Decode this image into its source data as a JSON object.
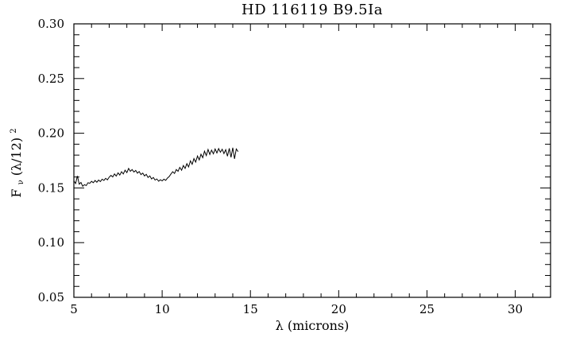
{
  "page": {
    "background": "#ffffff"
  },
  "chart_data": {
    "type": "line",
    "title": "HD 116119 B9.5Ia",
    "xlabel": "λ (microns)",
    "ylabel": "Fν(λ/12)²",
    "ylabel_parts": {
      "base": "F",
      "sub": "ν",
      "body": "(λ/12)",
      "sup": "2"
    },
    "xlim": [
      5,
      32
    ],
    "ylim": [
      0.05,
      0.3
    ],
    "x_major_ticks": [
      5,
      10,
      15,
      20,
      25,
      30
    ],
    "x_tick_labels": [
      "5",
      "10",
      "15",
      "20",
      "25",
      "30"
    ],
    "x_minor_step": 1,
    "y_major_ticks": [
      0.05,
      0.1,
      0.15,
      0.2,
      0.25,
      0.3
    ],
    "y_tick_labels": [
      "0.05",
      "0.10",
      "0.15",
      "0.20",
      "0.25",
      "0.30"
    ],
    "y_minor_step": 0.01,
    "grid": false,
    "legend": "none",
    "line_color": "#000000",
    "frame_color": "#000000",
    "background_color": "#ffffff",
    "series": [
      {
        "name": "HD 116119 spectrum",
        "points": [
          [
            5.0,
            0.1565
          ],
          [
            5.1,
            0.154
          ],
          [
            5.2,
            0.161
          ],
          [
            5.3,
            0.1535
          ],
          [
            5.4,
            0.155
          ],
          [
            5.5,
            0.1515
          ],
          [
            5.6,
            0.153
          ],
          [
            5.7,
            0.1522
          ],
          [
            5.8,
            0.1548
          ],
          [
            5.9,
            0.1542
          ],
          [
            6.0,
            0.156
          ],
          [
            6.1,
            0.1548
          ],
          [
            6.2,
            0.1568
          ],
          [
            6.3,
            0.1552
          ],
          [
            6.4,
            0.1572
          ],
          [
            6.5,
            0.1558
          ],
          [
            6.6,
            0.158
          ],
          [
            6.7,
            0.1568
          ],
          [
            6.8,
            0.1588
          ],
          [
            6.9,
            0.1574
          ],
          [
            7.0,
            0.1598
          ],
          [
            7.1,
            0.1615
          ],
          [
            7.2,
            0.16
          ],
          [
            7.3,
            0.1628
          ],
          [
            7.4,
            0.1608
          ],
          [
            7.5,
            0.1638
          ],
          [
            7.6,
            0.1618
          ],
          [
            7.7,
            0.1648
          ],
          [
            7.8,
            0.1628
          ],
          [
            7.9,
            0.1662
          ],
          [
            8.0,
            0.164
          ],
          [
            8.1,
            0.1678
          ],
          [
            8.2,
            0.1652
          ],
          [
            8.3,
            0.1668
          ],
          [
            8.4,
            0.1645
          ],
          [
            8.5,
            0.166
          ],
          [
            8.6,
            0.1635
          ],
          [
            8.7,
            0.165
          ],
          [
            8.8,
            0.1622
          ],
          [
            8.9,
            0.1636
          ],
          [
            9.0,
            0.161
          ],
          [
            9.1,
            0.1624
          ],
          [
            9.2,
            0.1596
          ],
          [
            9.3,
            0.161
          ],
          [
            9.4,
            0.1582
          ],
          [
            9.5,
            0.1596
          ],
          [
            9.6,
            0.1572
          ],
          [
            9.7,
            0.1582
          ],
          [
            9.8,
            0.1562
          ],
          [
            9.9,
            0.1575
          ],
          [
            10.0,
            0.1565
          ],
          [
            10.1,
            0.158
          ],
          [
            10.2,
            0.157
          ],
          [
            10.3,
            0.159
          ],
          [
            10.4,
            0.1605
          ],
          [
            10.5,
            0.1628
          ],
          [
            10.6,
            0.1648
          ],
          [
            10.7,
            0.1632
          ],
          [
            10.8,
            0.1668
          ],
          [
            10.9,
            0.1652
          ],
          [
            11.0,
            0.1688
          ],
          [
            11.1,
            0.1662
          ],
          [
            11.2,
            0.1705
          ],
          [
            11.3,
            0.1678
          ],
          [
            11.4,
            0.1722
          ],
          [
            11.5,
            0.1692
          ],
          [
            11.6,
            0.1748
          ],
          [
            11.7,
            0.1716
          ],
          [
            11.8,
            0.1768
          ],
          [
            11.9,
            0.1736
          ],
          [
            12.0,
            0.1792
          ],
          [
            12.1,
            0.1756
          ],
          [
            12.2,
            0.1808
          ],
          [
            12.3,
            0.1776
          ],
          [
            12.4,
            0.1836
          ],
          [
            12.5,
            0.1796
          ],
          [
            12.6,
            0.1852
          ],
          [
            12.7,
            0.1806
          ],
          [
            12.8,
            0.1846
          ],
          [
            12.9,
            0.1812
          ],
          [
            13.0,
            0.1856
          ],
          [
            13.1,
            0.182
          ],
          [
            13.2,
            0.186
          ],
          [
            13.3,
            0.1826
          ],
          [
            13.4,
            0.1854
          ],
          [
            13.5,
            0.1814
          ],
          [
            13.6,
            0.185
          ],
          [
            13.7,
            0.179
          ],
          [
            13.8,
            0.1862
          ],
          [
            13.9,
            0.178
          ],
          [
            14.0,
            0.1868
          ],
          [
            14.1,
            0.1766
          ],
          [
            14.2,
            0.1856
          ],
          [
            14.3,
            0.1832
          ]
        ]
      }
    ]
  }
}
